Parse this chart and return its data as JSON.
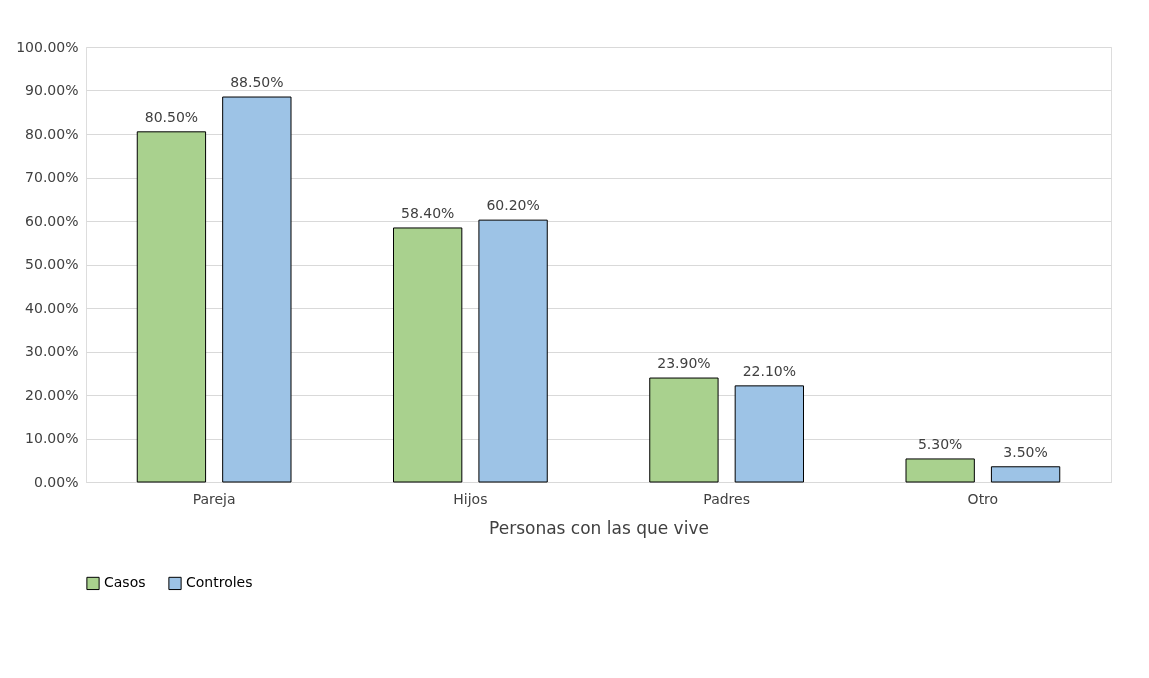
{
  "chart_data": {
    "type": "bar",
    "xlabel": "Personas con las que vive",
    "categories": [
      "Pareja",
      "Hijos",
      "Padres",
      "Otro"
    ],
    "series": [
      {
        "name": "Casos",
        "color": "#a9d18e",
        "values": [
          80.5,
          58.4,
          23.9,
          5.3
        ],
        "value_labels": [
          "80.50%",
          "58.40%",
          "23.90%",
          "5.30%"
        ]
      },
      {
        "name": "Controles",
        "color": "#9dc3e6",
        "values": [
          88.5,
          60.2,
          22.1,
          3.5
        ],
        "value_labels": [
          "88.50%",
          "60.20%",
          "22.10%",
          "3.50%"
        ]
      }
    ],
    "ylim": [
      0,
      100
    ],
    "yticks": [
      {
        "value": 0,
        "label": "0.00%"
      },
      {
        "value": 10,
        "label": "10.00%"
      },
      {
        "value": 20,
        "label": "20.00%"
      },
      {
        "value": 30,
        "label": "30.00%"
      },
      {
        "value": 40,
        "label": "40.00%"
      },
      {
        "value": 50,
        "label": "50.00%"
      },
      {
        "value": 60,
        "label": "60.00%"
      },
      {
        "value": 70,
        "label": "70.00%"
      },
      {
        "value": 80,
        "label": "80.00%"
      },
      {
        "value": 90,
        "label": "90.00%"
      },
      {
        "value": 100,
        "label": "100.00%"
      }
    ],
    "grid": "y",
    "legend": "bottom"
  }
}
